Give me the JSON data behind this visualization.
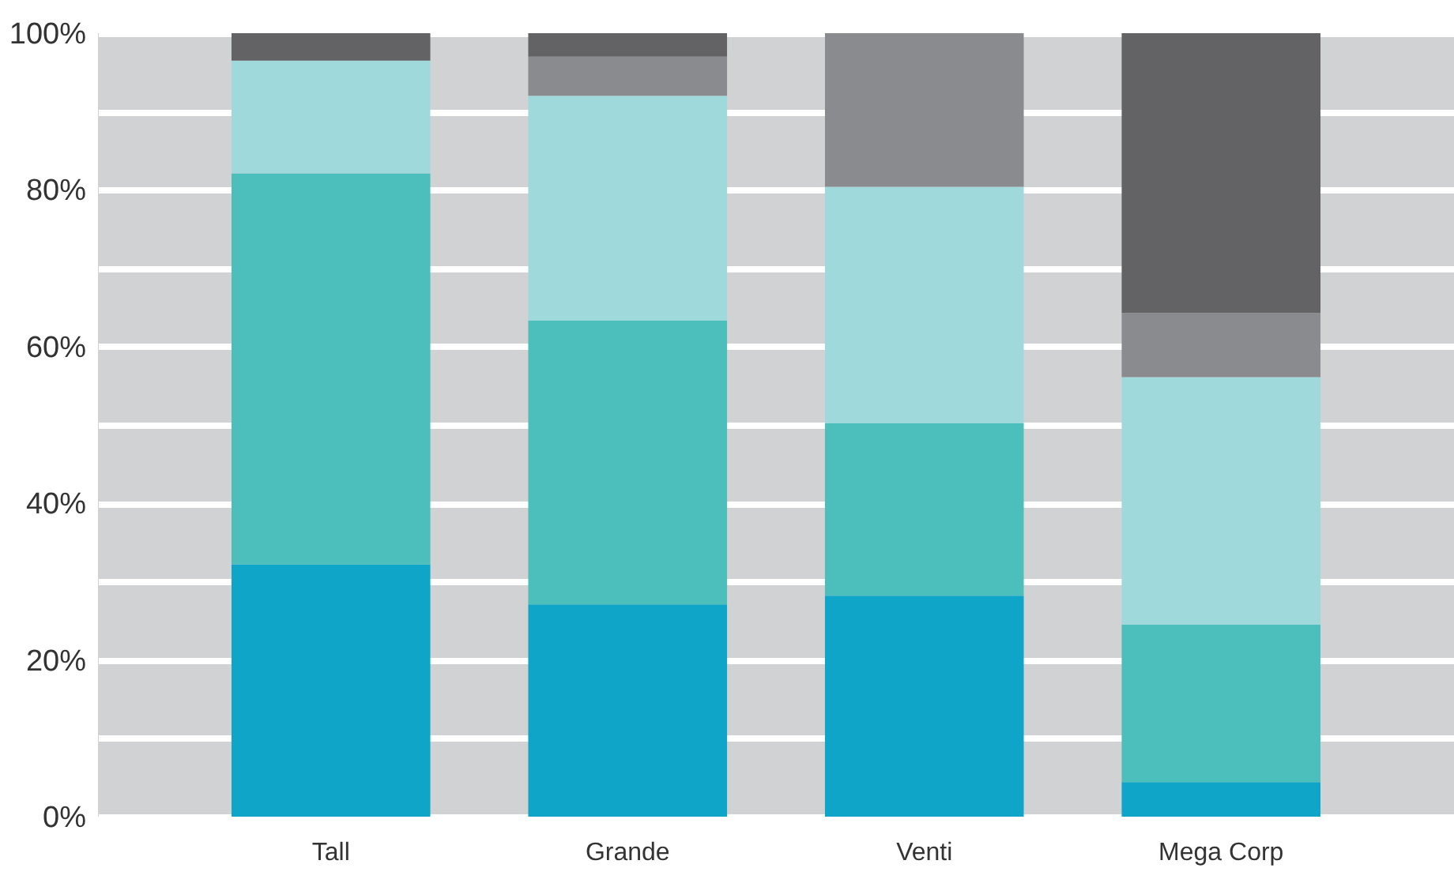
{
  "chart_data": {
    "type": "bar",
    "stacked": true,
    "categories": [
      "Tall",
      "Grande",
      "Venti",
      "Mega Corp"
    ],
    "series": [
      {
        "color": "#0ea5c9",
        "values": [
          32.2,
          27.1,
          28.2,
          4.4
        ]
      },
      {
        "color": "#4cbfbc",
        "values": [
          49.9,
          36.2,
          22.0,
          20.1
        ]
      },
      {
        "color": "#a0d9dc",
        "values": [
          14.4,
          28.7,
          30.2,
          31.6
        ]
      },
      {
        "color": "#8a8b8f",
        "values": [
          0,
          5.0,
          19.6,
          8.2
        ]
      },
      {
        "color": "#636365",
        "values": [
          3.5,
          3.0,
          0,
          35.7
        ]
      }
    ],
    "ylim": [
      0,
      100
    ],
    "yticks": [
      {
        "value": 0,
        "label": "0%"
      },
      {
        "value": 10,
        "label": null
      },
      {
        "value": 20,
        "label": "20%"
      },
      {
        "value": 30,
        "label": null
      },
      {
        "value": 40,
        "label": "40%"
      },
      {
        "value": 50,
        "label": null
      },
      {
        "value": 60,
        "label": "60%"
      },
      {
        "value": 70,
        "label": null
      },
      {
        "value": 80,
        "label": "80%"
      },
      {
        "value": 90,
        "label": null
      },
      {
        "value": 100,
        "label": "100%"
      }
    ],
    "grid": "y",
    "legend": false
  }
}
